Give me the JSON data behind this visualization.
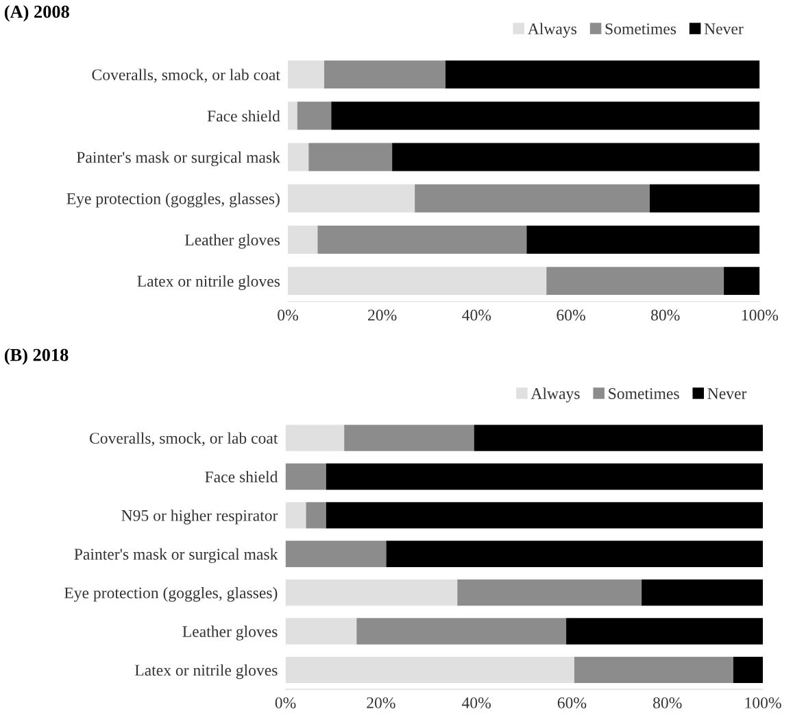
{
  "chart_data": [
    {
      "type": "bar",
      "title": "(A) 2008",
      "orientation": "horizontal",
      "stacked": true,
      "legend": "top right",
      "grid": false,
      "categories": [
        "Coveralls, smock, or lab coat",
        "Face shield",
        "Painter's mask or surgical mask",
        "Eye protection (goggles, glasses)",
        "Leather gloves",
        "Latex or nitrile gloves"
      ],
      "series": [
        {
          "name": "Always",
          "color": "#e0e0e0",
          "values": [
            7.7,
            2.0,
            4.4,
            26.9,
            6.3,
            54.8
          ]
        },
        {
          "name": "Sometimes",
          "color": "#8c8c8c",
          "values": [
            25.7,
            7.2,
            17.7,
            49.8,
            44.3,
            37.6
          ]
        },
        {
          "name": "Never",
          "color": "#000000",
          "values": [
            66.6,
            90.8,
            77.9,
            23.3,
            49.4,
            7.6
          ]
        }
      ],
      "xlim": [
        0,
        100
      ],
      "xticks": [
        {
          "value": 0,
          "label": "0%"
        },
        {
          "value": 20,
          "label": "20%"
        },
        {
          "value": 40,
          "label": "40%"
        },
        {
          "value": 60,
          "label": "60%"
        },
        {
          "value": 80,
          "label": "80%"
        },
        {
          "value": 100,
          "label": "100%"
        }
      ]
    },
    {
      "type": "bar",
      "title": "(B) 2018",
      "orientation": "horizontal",
      "stacked": true,
      "legend": "top right",
      "grid": false,
      "categories": [
        "Coveralls, smock, or lab coat",
        "Face shield",
        "N95 or higher respirator",
        "Painter's mask or surgical mask",
        "Eye protection (goggles, glasses)",
        "Leather gloves",
        "Latex or nitrile gloves"
      ],
      "series": [
        {
          "name": "Always",
          "color": "#e0e0e0",
          "values": [
            12.3,
            0,
            4.3,
            0,
            36.0,
            14.9,
            60.5
          ]
        },
        {
          "name": "Sometimes",
          "color": "#8c8c8c",
          "values": [
            27.2,
            8.5,
            4.2,
            21.1,
            38.6,
            43.9,
            33.3
          ]
        },
        {
          "name": "Never",
          "color": "#000000",
          "values": [
            60.5,
            91.5,
            91.5,
            78.9,
            25.4,
            41.2,
            6.2
          ]
        }
      ],
      "xlim": [
        0,
        100
      ],
      "xticks": [
        {
          "value": 0,
          "label": "0%"
        },
        {
          "value": 20,
          "label": "20%"
        },
        {
          "value": 40,
          "label": "40%"
        },
        {
          "value": 60,
          "label": "60%"
        },
        {
          "value": 80,
          "label": "80%"
        },
        {
          "value": 100,
          "label": "100%"
        }
      ]
    }
  ]
}
